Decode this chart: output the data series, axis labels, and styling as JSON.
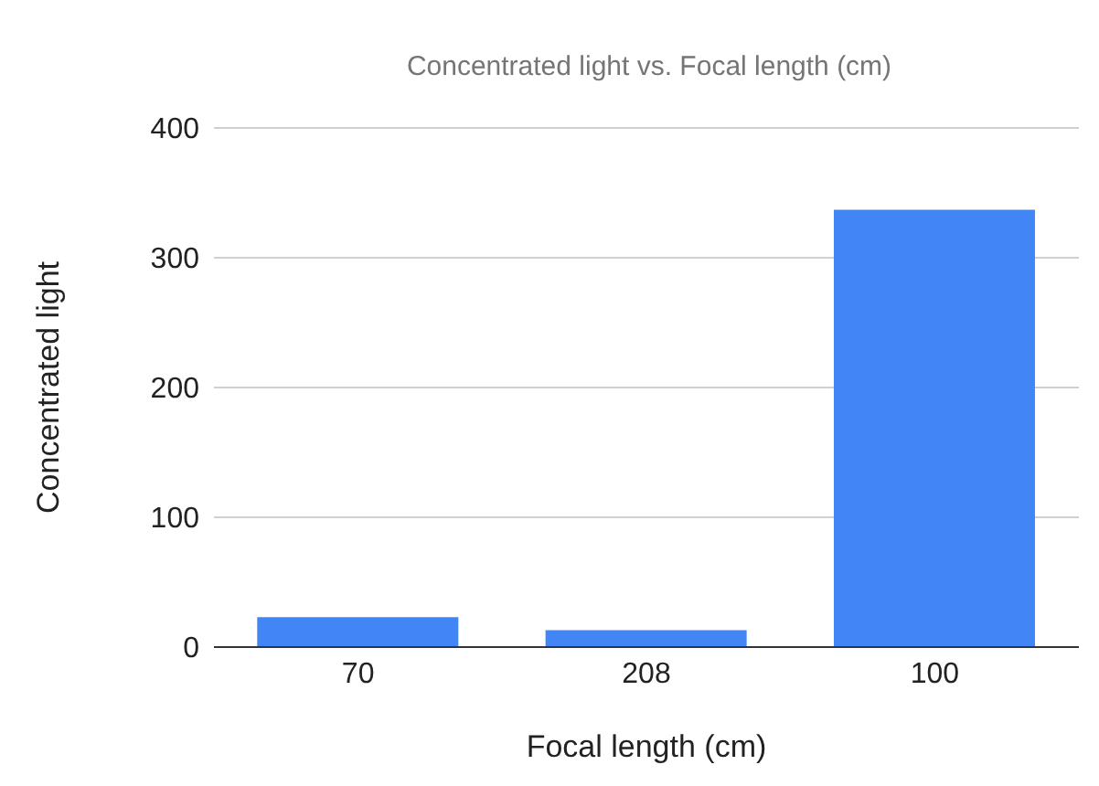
{
  "chart_data": {
    "type": "bar",
    "title": "Concentrated light vs. Focal length (cm)",
    "xlabel": "Focal length (cm)",
    "ylabel": "Concentrated light",
    "categories": [
      "70",
      "208",
      "100"
    ],
    "values": [
      23,
      13,
      337
    ],
    "color": "#4285f4",
    "ylim": [
      0,
      400
    ],
    "yticks": [
      0,
      100,
      200,
      300,
      400
    ],
    "grid": "y"
  }
}
